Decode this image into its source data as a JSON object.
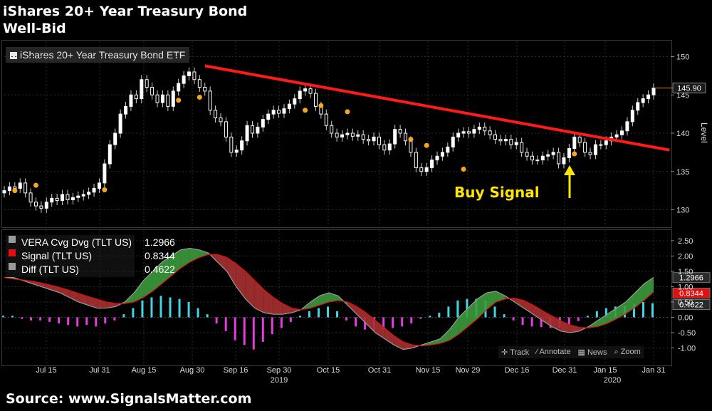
{
  "title_line1": "iShares 20+ Year Treasury Bond",
  "title_line2": "Well-Bid",
  "price_legend": "iShares 20+ Year Treasury Bond ETF",
  "y_axis_label": "Level",
  "annotation": "Buy Signal",
  "source": "Source:  www.SignalsMatter.com",
  "toolbar": {
    "track": "Track",
    "annotate": "Annotate",
    "news": "News",
    "zoom": "Zoom"
  },
  "macd_legend": [
    {
      "label": "VERA Cvg Dvg (TLT US)",
      "value": "1.2966",
      "color": "#9a9a9a"
    },
    {
      "label": "Signal (TLT US)",
      "value": "0.8344",
      "color": "#e01010"
    },
    {
      "label": "Diff (TLT US)",
      "value": "0.4622",
      "color": "#9a9a9a"
    }
  ],
  "colors": {
    "trendline": "#ff1a1a",
    "dots": "#f5a623",
    "hist_pos": "#3fd7e6",
    "hist_neg": "#e83ce0",
    "macd_up": "#3c9a3c",
    "macd_down": "#a83030",
    "buy": "#ffe600"
  },
  "chart_data": [
    {
      "type": "candlestick",
      "title": "iShares 20+ Year Treasury Bond ETF",
      "ylabel": "Level",
      "ylim": [
        128,
        152
      ],
      "yticks": [
        130,
        135,
        140,
        145,
        150
      ],
      "x_ticks": [
        "Jul 15",
        "Jul 31",
        "Aug 15",
        "Aug 30",
        "Sep 16",
        "Sep 30",
        "Oct 15",
        "Oct 31",
        "Nov 15",
        "Nov 29",
        "Dec 16",
        "Dec 31",
        "Jan 15",
        "Jan 31"
      ],
      "year_labels": [
        "2019",
        "2020"
      ],
      "last_value_label": "145.90",
      "close": [
        132.5,
        133.0,
        132.8,
        133.5,
        132.2,
        131.0,
        130.5,
        130.2,
        131.0,
        131.5,
        131.2,
        132.0,
        131.3,
        131.6,
        131.8,
        132.0,
        132.3,
        132.8,
        133.5,
        136.0,
        138.5,
        140.0,
        142.5,
        143.5,
        145.0,
        144.5,
        147.0,
        146.0,
        145.0,
        144.0,
        145.0,
        143.5,
        145.5,
        146.5,
        147.5,
        148.0,
        147.0,
        146.0,
        145.5,
        143.0,
        142.0,
        141.5,
        139.5,
        137.5,
        137.8,
        139.0,
        141.0,
        140.0,
        140.8,
        141.8,
        142.5,
        143.0,
        142.6,
        143.2,
        143.8,
        144.5,
        145.5,
        145.8,
        145.2,
        143.5,
        142.5,
        141.0,
        140.0,
        139.5,
        139.8,
        140.0,
        139.6,
        139.8,
        139.2,
        139.0,
        139.5,
        138.5,
        137.8,
        138.6,
        140.5,
        140.0,
        139.0,
        137.5,
        135.5,
        135.0,
        135.5,
        136.5,
        137.0,
        137.5,
        138.2,
        139.5,
        140.0,
        140.2,
        140.0,
        140.5,
        140.8,
        140.3,
        139.8,
        139.2,
        139.0,
        139.2,
        138.5,
        138.8,
        137.5,
        137.0,
        136.5,
        136.5,
        137.0,
        137.2,
        137.5,
        136.0,
        136.8,
        138.0,
        139.5,
        138.8,
        137.5,
        137.2,
        138.5,
        138.5,
        139.0,
        139.5,
        139.8,
        140.3,
        141.5,
        143.0,
        144.0,
        144.5,
        145.0,
        145.9
      ],
      "signal_dots": [
        {
          "i": 2,
          "y": 132.5
        },
        {
          "i": 6,
          "y": 133.2
        },
        {
          "i": 19,
          "y": 132.6
        },
        {
          "i": 33,
          "y": 144.3
        },
        {
          "i": 37,
          "y": 144.7
        },
        {
          "i": 57,
          "y": 143.0
        },
        {
          "i": 60,
          "y": 143.6
        },
        {
          "i": 65,
          "y": 142.8
        },
        {
          "i": 77,
          "y": 139.2
        },
        {
          "i": 80,
          "y": 138.4
        },
        {
          "i": 87,
          "y": 135.3
        },
        {
          "i": 108,
          "y": 137.3
        }
      ],
      "trendline": [
        {
          "i": 38,
          "y": 148.8
        },
        {
          "i": 126,
          "y": 137.8
        }
      ]
    },
    {
      "type": "line",
      "title": "VERA Cvg Dvg (TLT US)",
      "ylim": [
        -1.5,
        2.8
      ],
      "yticks": [
        -1.0,
        -0.5,
        0.0,
        0.5,
        1.0,
        1.5,
        2.0,
        2.5
      ],
      "ytick_labels": [
        "-1.00",
        "-0.50",
        "0.00",
        "0.50",
        "1.00",
        "1.50",
        "2.00",
        "2.50"
      ],
      "series": [
        {
          "name": "VERA Cvg Dvg (TLT US)",
          "values": [
            1.3,
            1.3,
            1.2,
            1.1,
            1.0,
            0.9,
            0.8,
            0.65,
            0.5,
            0.4,
            0.3,
            0.3,
            0.35,
            0.5,
            0.8,
            1.2,
            1.5,
            1.8,
            2.0,
            2.2,
            2.25,
            2.2,
            2.1,
            1.8,
            1.5,
            1.0,
            0.6,
            0.3,
            0.15,
            0.1,
            0.1,
            0.15,
            0.25,
            0.5,
            0.7,
            0.8,
            0.7,
            0.4,
            0.1,
            -0.2,
            -0.5,
            -0.7,
            -0.9,
            -1.05,
            -1.0,
            -0.9,
            -0.8,
            -0.7,
            -0.4,
            0.0,
            0.3,
            0.6,
            0.8,
            0.85,
            0.7,
            0.5,
            0.3,
            0.1,
            -0.1,
            -0.3,
            -0.45,
            -0.5,
            -0.45,
            -0.3,
            -0.1,
            0.1,
            0.3,
            0.5,
            0.8,
            1.1,
            1.3
          ]
        },
        {
          "name": "Signal (TLT US)",
          "values": [
            1.3,
            1.25,
            1.22,
            1.18,
            1.12,
            1.05,
            0.97,
            0.88,
            0.78,
            0.68,
            0.59,
            0.5,
            0.45,
            0.45,
            0.5,
            0.65,
            0.85,
            1.1,
            1.35,
            1.6,
            1.8,
            1.95,
            2.05,
            2.05,
            1.95,
            1.75,
            1.5,
            1.2,
            0.9,
            0.65,
            0.45,
            0.3,
            0.25,
            0.3,
            0.4,
            0.5,
            0.55,
            0.5,
            0.35,
            0.15,
            -0.1,
            -0.35,
            -0.6,
            -0.8,
            -0.9,
            -0.93,
            -0.9,
            -0.85,
            -0.75,
            -0.55,
            -0.3,
            -0.05,
            0.25,
            0.5,
            0.6,
            0.62,
            0.55,
            0.4,
            0.22,
            0.05,
            -0.12,
            -0.25,
            -0.33,
            -0.34,
            -0.3,
            -0.2,
            -0.05,
            0.12,
            0.32,
            0.56,
            0.83
          ]
        },
        {
          "name": "Diff (TLT US)",
          "values": [
            0.05,
            0.05,
            -0.05,
            -0.1,
            -0.1,
            -0.15,
            -0.2,
            -0.25,
            -0.3,
            -0.25,
            -0.3,
            -0.2,
            -0.1,
            0.1,
            0.3,
            0.55,
            0.65,
            0.7,
            0.65,
            0.6,
            0.5,
            0.3,
            0.1,
            -0.2,
            -0.45,
            -0.75,
            -0.9,
            -1.05,
            -0.8,
            -0.55,
            -0.35,
            -0.15,
            0.05,
            0.2,
            0.3,
            0.35,
            0.2,
            -0.1,
            -0.3,
            -0.4,
            -0.45,
            -0.4,
            -0.35,
            -0.3,
            -0.2,
            -0.05,
            0.05,
            0.15,
            0.35,
            0.55,
            0.6,
            0.6,
            0.55,
            0.35,
            0.1,
            -0.1,
            -0.25,
            -0.3,
            -0.32,
            -0.35,
            -0.33,
            -0.25,
            -0.12,
            0.05,
            0.2,
            0.3,
            0.35,
            0.38,
            0.45,
            0.5,
            0.46
          ]
        }
      ],
      "last_value_labels": [
        "1.2966",
        "0.8344",
        "0.4622"
      ]
    }
  ]
}
